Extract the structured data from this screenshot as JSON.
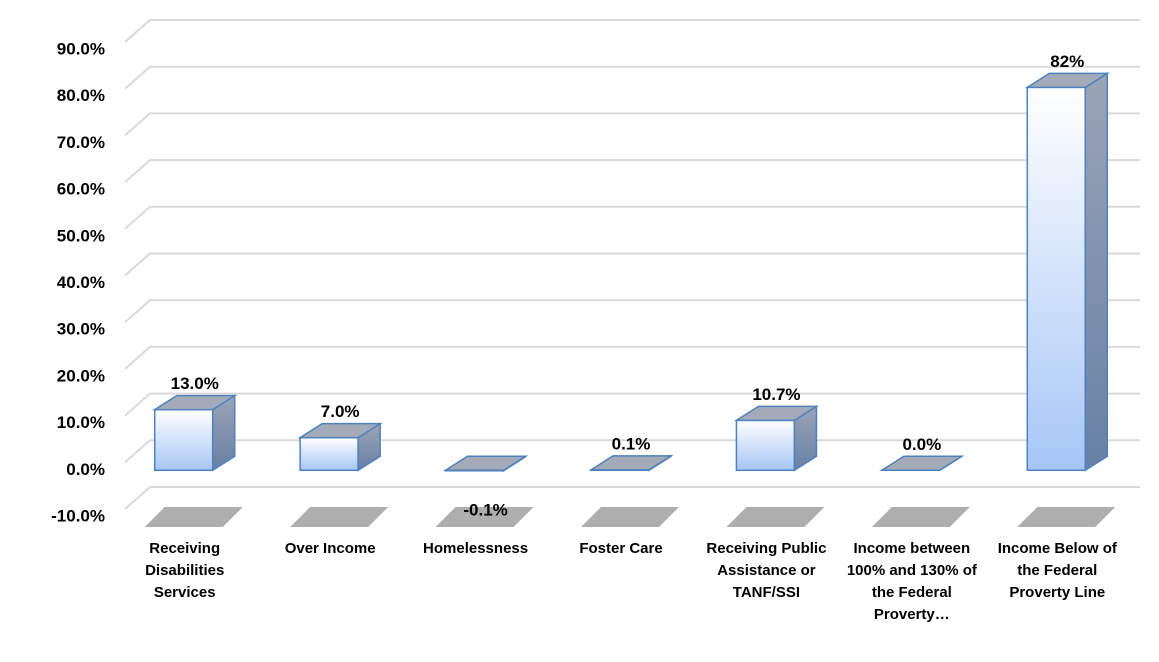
{
  "chart_data": {
    "type": "bar3d",
    "categories": [
      "Receiving Disabilities Services",
      "Over Income",
      "Homelessness",
      "Foster Care",
      "Receiving Public Assistance or TANF/SSI",
      "Income between 100% and 130% of the Federal Proverty…",
      "Income Below of the Federal Proverty Line"
    ],
    "values": [
      13.0,
      7.0,
      -0.1,
      0.1,
      10.7,
      0.0,
      82
    ],
    "value_labels": [
      "13.0%",
      "7.0%",
      "-0.1%",
      "0.1%",
      "10.7%",
      "0.0%",
      "82%"
    ],
    "color": "#a8c8f8",
    "ylim": [
      -10,
      90
    ],
    "yticks": [
      {
        "value": -10,
        "label": "-10.0%"
      },
      {
        "value": 0,
        "label": "0.0%"
      },
      {
        "value": 10,
        "label": "10.0%"
      },
      {
        "value": 20,
        "label": "20.0%"
      },
      {
        "value": 30,
        "label": "30.0%"
      },
      {
        "value": 40,
        "label": "40.0%"
      },
      {
        "value": 50,
        "label": "50.0%"
      },
      {
        "value": 60,
        "label": "60.0%"
      },
      {
        "value": 70,
        "label": "70.0%"
      },
      {
        "value": 80,
        "label": "80.0%"
      },
      {
        "value": 90,
        "label": "90.0%"
      }
    ],
    "grid": true
  }
}
